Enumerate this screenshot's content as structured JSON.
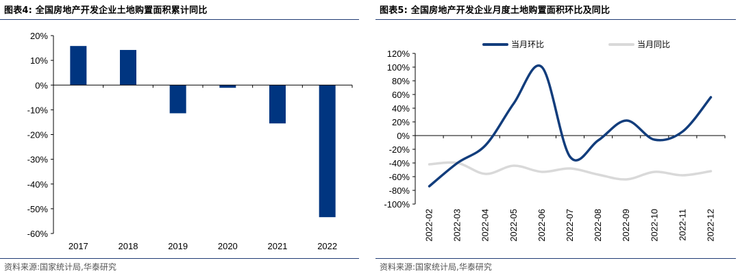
{
  "left_panel": {
    "title": "图表4:  全国房地产开发企业土地购置面积累计同比",
    "source": "资料来源:国家统计局,华泰研究"
  },
  "right_panel": {
    "title": "图表5:  全国房地产开发企业月度土地购置面积环比及同比",
    "source": "资料来源:国家统计局,华泰研究"
  },
  "chart_data": [
    {
      "type": "bar",
      "categories": [
        "2017",
        "2018",
        "2019",
        "2020",
        "2021",
        "2022"
      ],
      "values": [
        15.8,
        14.2,
        -11.4,
        -1.1,
        -15.5,
        -53.4
      ],
      "ylim": [
        -60,
        20
      ],
      "yticks": [
        20,
        10,
        0,
        -10,
        -20,
        -30,
        -40,
        -50,
        -60
      ],
      "ytick_labels": [
        "20%",
        "10%",
        "0%",
        "-10%",
        "-20%",
        "-30%",
        "-40%",
        "-50%",
        "-60%"
      ],
      "bar_color": "#003580",
      "grid": false,
      "legend": "none"
    },
    {
      "type": "line",
      "categories": [
        "2022-02",
        "2022-03",
        "2022-04",
        "2022-05",
        "2022-06",
        "2022-07",
        "2022-08",
        "2022-09",
        "2022-10",
        "2022-11",
        "2022-12"
      ],
      "series": [
        {
          "name": "当月环比",
          "color": "#123d7c",
          "values": [
            -74,
            -40,
            -14,
            47,
            100,
            -31,
            -7,
            22,
            -6,
            6,
            56
          ]
        },
        {
          "name": "当月同比",
          "color": "#d9d9d9",
          "values": [
            -42,
            -40,
            -56,
            -44,
            -53,
            -48,
            -57,
            -64,
            -53,
            -58,
            -52
          ]
        }
      ],
      "ylim": [
        -100,
        120
      ],
      "yticks": [
        120,
        100,
        80,
        60,
        40,
        20,
        0,
        -20,
        -40,
        -60,
        -80,
        -100
      ],
      "ytick_labels": [
        "120%",
        "100%",
        "80%",
        "60%",
        "40%",
        "20%",
        "0%",
        "-20%",
        "-40%",
        "-60%",
        "-80%",
        "-100%"
      ],
      "grid": false,
      "legend": "top"
    }
  ]
}
